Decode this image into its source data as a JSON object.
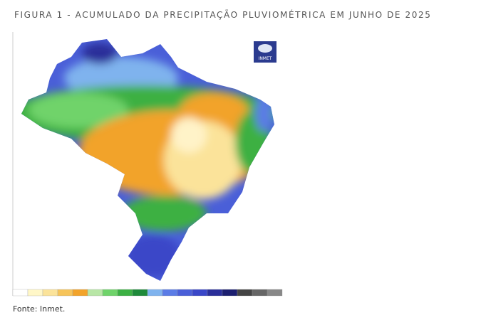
{
  "figure": {
    "title": "FIGURA 1 - ACUMULADO DA PRECIPITAÇÃO PLUVIOMÉTRICA EM JUNHO DE 2025",
    "logo_text": "INMET",
    "source": "Fonte: Inmet."
  }
}
